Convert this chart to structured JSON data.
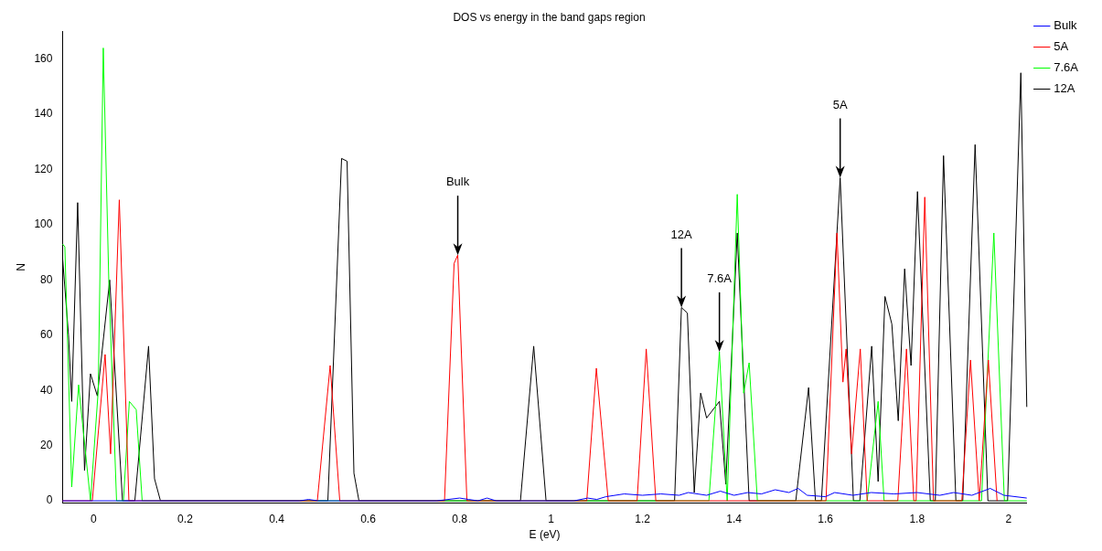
{
  "chart_data": {
    "type": "line",
    "title": "DOS vs energy in the band gaps region",
    "xlabel": "E (eV)",
    "ylabel": "N",
    "xlim": [
      -0.068,
      2.04
    ],
    "ylim": [
      -0.7,
      170
    ],
    "xticks": [
      0,
      0.2,
      0.4,
      0.6,
      0.8,
      1,
      1.2,
      1.4,
      1.6,
      1.8,
      2
    ],
    "yticks": [
      0,
      20,
      40,
      60,
      80,
      100,
      120,
      140,
      160
    ],
    "grid": false,
    "legend": "top right",
    "marker": "none",
    "line_style": "solid",
    "annotations": [
      {
        "text": "Bulk",
        "x": 0.796,
        "y": 89
      },
      {
        "text": "12A",
        "x": 1.285,
        "y": 70
      },
      {
        "text": "7.6A",
        "x": 1.368,
        "y": 54
      },
      {
        "text": "5A",
        "x": 1.632,
        "y": 117
      }
    ],
    "series": [
      {
        "name": "Bulk",
        "color": "#0000ff",
        "x": [
          -0.068,
          0.45,
          0.47,
          0.49,
          0.75,
          0.8,
          0.82,
          0.84,
          0.86,
          0.88,
          1.05,
          1.08,
          1.1,
          1.12,
          1.16,
          1.2,
          1.24,
          1.28,
          1.3,
          1.34,
          1.37,
          1.4,
          1.43,
          1.46,
          1.49,
          1.52,
          1.54,
          1.56,
          1.6,
          1.62,
          1.66,
          1.7,
          1.75,
          1.8,
          1.85,
          1.88,
          1.92,
          1.96,
          1.99,
          2.04
        ],
        "values": [
          0,
          0,
          0.5,
          0,
          0,
          1,
          0.5,
          0,
          1,
          0,
          0,
          1,
          0.5,
          1.5,
          2.5,
          2,
          2.5,
          2,
          3,
          2,
          3.5,
          2,
          3,
          2.5,
          4,
          3,
          4.5,
          2,
          1.5,
          3,
          2,
          3,
          2.5,
          3,
          2,
          3,
          2,
          4.5,
          2,
          1
        ]
      },
      {
        "name": "5A",
        "color": "#ff0000",
        "x": [
          -0.068,
          -0.003,
          0.025,
          0.037,
          0.056,
          0.077,
          0.489,
          0.517,
          0.538,
          0.767,
          0.788,
          0.796,
          0.816,
          1.078,
          1.099,
          1.125,
          1.188,
          1.208,
          1.229,
          1.601,
          1.625,
          1.638,
          1.645,
          1.657,
          1.676,
          1.691,
          1.758,
          1.777,
          1.793,
          1.798,
          1.817,
          1.836,
          1.898,
          1.917,
          1.936,
          1.956,
          1.975
        ],
        "values": [
          0,
          0,
          53,
          17,
          109,
          0,
          0,
          49,
          0,
          0,
          86,
          89,
          0,
          0,
          48,
          0,
          0,
          55,
          0,
          0,
          97,
          43,
          55,
          17,
          55,
          0,
          0,
          55,
          0,
          0,
          110,
          0,
          0,
          51,
          0,
          51,
          0
        ]
      },
      {
        "name": "7.6A",
        "color": "#00ff00",
        "x": [
          -0.068,
          -0.063,
          -0.048,
          -0.033,
          -0.007,
          0.01,
          0.021,
          0.033,
          0.05,
          0.065,
          0.078,
          0.093,
          0.106,
          1.345,
          1.368,
          1.385,
          1.407,
          1.421,
          1.433,
          1.451,
          1.691,
          1.715,
          1.728,
          1.941,
          1.968,
          1.991,
          2.04
        ],
        "values": [
          93,
          92,
          5,
          42,
          0,
          40,
          164,
          80,
          0,
          0,
          36,
          33,
          0,
          0,
          54,
          0,
          111,
          39,
          50,
          0,
          0,
          36,
          0,
          0,
          97,
          0,
          0
        ]
      },
      {
        "name": "12A",
        "color": "#000000",
        "x": [
          -0.068,
          -0.055,
          -0.048,
          -0.035,
          -0.02,
          -0.007,
          0.008,
          0.035,
          0.063,
          0.09,
          0.12,
          0.133,
          0.146,
          0.512,
          0.542,
          0.554,
          0.569,
          0.58,
          0.933,
          0.962,
          0.989,
          1.27,
          1.285,
          1.298,
          1.313,
          1.327,
          1.34,
          1.368,
          1.382,
          1.407,
          1.433,
          1.535,
          1.563,
          1.578,
          1.591,
          1.632,
          1.661,
          1.675,
          1.701,
          1.715,
          1.73,
          1.745,
          1.759,
          1.773,
          1.787,
          1.801,
          1.829,
          1.84,
          1.858,
          1.885,
          1.9,
          1.927,
          1.955,
          1.998,
          2.027,
          2.04
        ],
        "values": [
          88,
          60,
          36,
          108,
          11,
          46,
          38,
          80,
          0,
          0,
          56,
          8,
          0,
          0,
          124,
          123,
          10,
          0,
          0,
          56,
          0,
          0,
          70,
          68,
          3,
          39,
          30,
          36,
          6,
          97,
          0,
          0,
          41,
          0,
          0,
          117,
          0,
          0,
          56,
          7,
          74,
          64,
          29,
          84,
          49,
          112,
          0,
          0,
          125,
          0,
          0,
          129,
          0,
          0,
          155,
          34
        ]
      }
    ]
  }
}
